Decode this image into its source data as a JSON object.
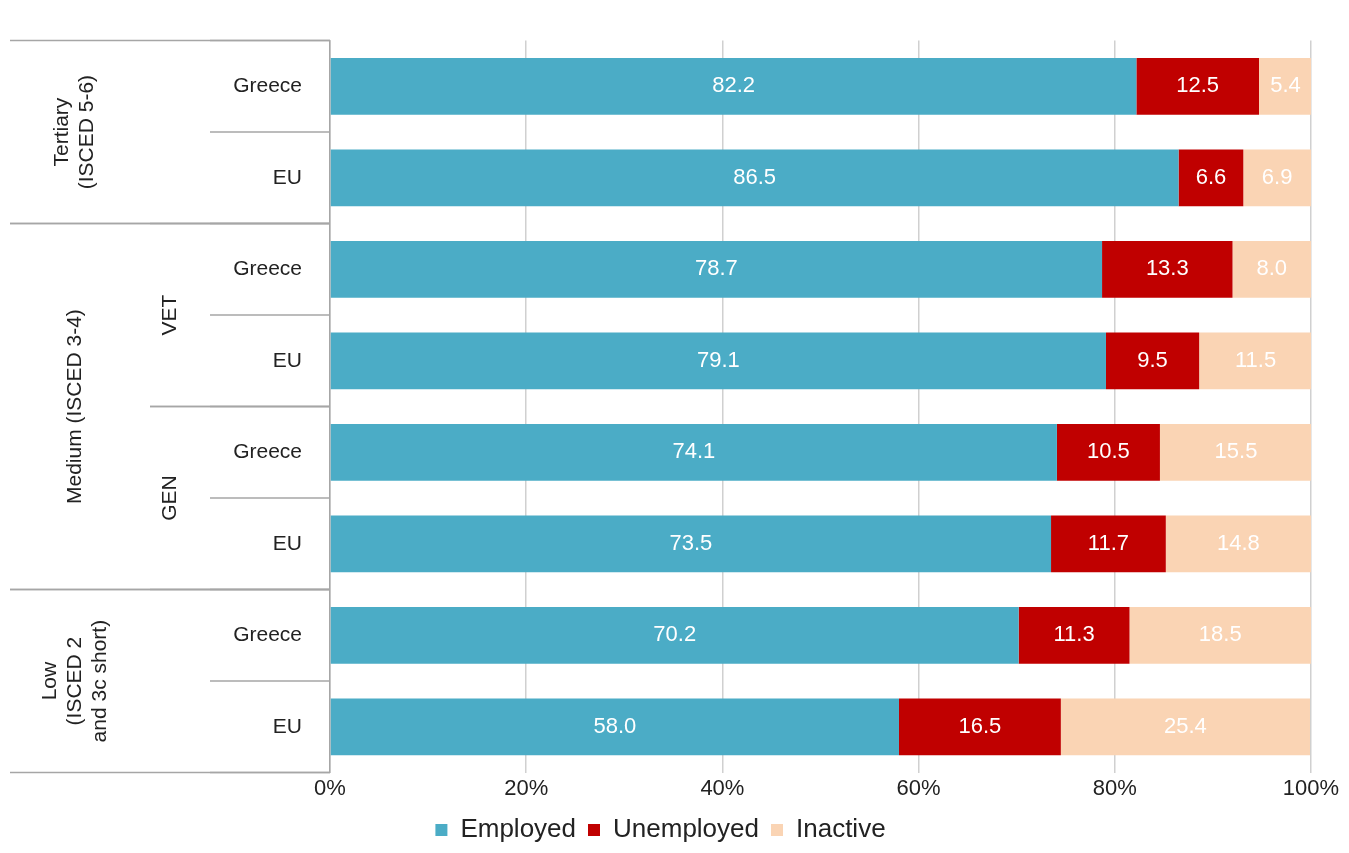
{
  "chart_data": {
    "type": "bar",
    "orientation": "horizontal",
    "stacked": true,
    "categories": [
      "Greece",
      "EU",
      "Greece",
      "EU",
      "Greece",
      "EU",
      "Greece",
      "EU"
    ],
    "series": [
      {
        "name": "Employed",
        "color": "#4bacc6",
        "values": [
          82.2,
          86.5,
          78.7,
          79.1,
          74.1,
          73.5,
          70.2,
          58.0
        ],
        "value_labels": [
          "82.2",
          "86.5",
          "78.7",
          "79.1",
          "74.1",
          "73.5",
          "70.2",
          "58.0"
        ]
      },
      {
        "name": "Unemployed",
        "color": "#c00000",
        "values": [
          12.5,
          6.6,
          13.3,
          9.5,
          10.5,
          11.7,
          11.3,
          16.5
        ],
        "value_labels": [
          "12.5",
          "6.6",
          "13.3",
          "9.5",
          "10.5",
          "11.7",
          "11.3",
          "16.5"
        ]
      },
      {
        "name": "Inactive",
        "color": "#fad4b4",
        "values": [
          5.4,
          6.9,
          8.0,
          11.5,
          15.5,
          14.8,
          18.5,
          25.4
        ],
        "value_labels": [
          "5.4",
          "6.9",
          "8.0",
          "11.5",
          "15.5",
          "14.8",
          "18.5",
          "25.4"
        ]
      }
    ],
    "xlim": [
      0,
      100
    ],
    "xticks": [
      {
        "value": 0,
        "label": "0%"
      },
      {
        "value": 20,
        "label": "20%"
      },
      {
        "value": 40,
        "label": "40%"
      },
      {
        "value": 60,
        "label": "60%"
      },
      {
        "value": 80,
        "label": "80%"
      },
      {
        "value": 100,
        "label": "100%"
      }
    ],
    "annotations": [
      "Tertiary\n(ISCED 5-6)",
      "Medium (ISCED 3-4)",
      "VET",
      "GEN",
      "Low\n(ISCED 2\nand 3c short)"
    ],
    "grid": "x",
    "legend": "bottom"
  }
}
